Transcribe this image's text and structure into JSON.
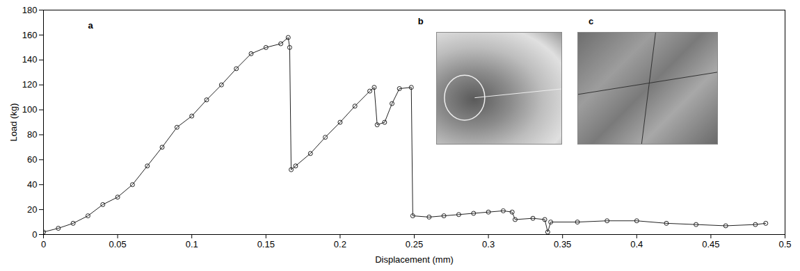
{
  "chart_data": {
    "type": "line",
    "x_label": "Displacement (mm)",
    "y_label": "Load (kg)",
    "annotations": [
      "a",
      "b",
      "c"
    ],
    "xlim": [
      0,
      0.5
    ],
    "xticks": [
      0,
      0.05,
      0.1,
      0.15,
      0.2,
      0.25,
      0.3,
      0.35,
      0.4,
      0.45,
      0.5
    ],
    "ylim": [
      0,
      180
    ],
    "yticks": [
      0,
      20,
      40,
      60,
      80,
      100,
      120,
      140,
      160,
      180
    ],
    "grid": false,
    "color": "#222222",
    "marker": "circle",
    "line_style": "solid",
    "x": [
      0,
      0.01,
      0.02,
      0.03,
      0.04,
      0.05,
      0.06,
      0.07,
      0.08,
      0.09,
      0.1,
      0.11,
      0.12,
      0.13,
      0.14,
      0.15,
      0.16,
      0.165,
      0.166,
      0.167,
      0.17,
      0.18,
      0.19,
      0.2,
      0.21,
      0.22,
      0.223,
      0.225,
      0.23,
      0.235,
      0.24,
      0.248,
      0.249,
      0.26,
      0.27,
      0.28,
      0.29,
      0.3,
      0.31,
      0.316,
      0.318,
      0.33,
      0.338,
      0.34,
      0.342,
      0.36,
      0.38,
      0.4,
      0.42,
      0.44,
      0.46,
      0.48,
      0.487
    ],
    "values": [
      2,
      5,
      9,
      15,
      24,
      30,
      40,
      55,
      70,
      86,
      95,
      108,
      120,
      133,
      145,
      150,
      153,
      158,
      150,
      52,
      55,
      65,
      78,
      90,
      103,
      115,
      118,
      88,
      90,
      105,
      117,
      118,
      15,
      14,
      15,
      16,
      17,
      18,
      19,
      18,
      12,
      13,
      12,
      2,
      10,
      10,
      11,
      11,
      9,
      8,
      7,
      8,
      9
    ]
  }
}
